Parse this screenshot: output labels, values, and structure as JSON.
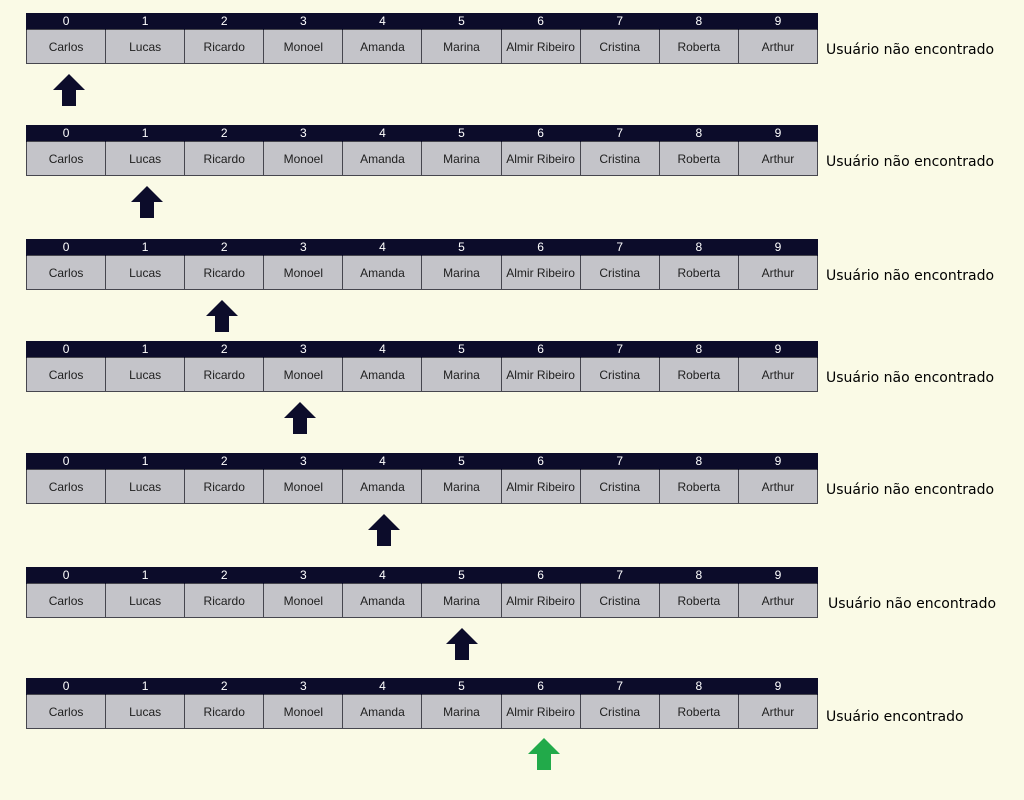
{
  "indices": [
    "0",
    "1",
    "2",
    "3",
    "4",
    "5",
    "6",
    "7",
    "8",
    "9"
  ],
  "names": [
    "Carlos",
    "Lucas",
    "Ricardo",
    "Monoel",
    "Amanda",
    "Marina",
    "Almir Ribeiro",
    "Cristina",
    "Roberta",
    "Arthur"
  ],
  "colors": {
    "index_header_bg": "#0c0c2a",
    "cell_bg": "#c4c4c9",
    "pointer_default": "#0c0c2a",
    "pointer_found": "#22aa4a",
    "background": "#fafae6"
  },
  "steps": [
    {
      "pointer_index": 0,
      "found": false,
      "status": "Usuário não encontrado"
    },
    {
      "pointer_index": 1,
      "found": false,
      "status": "Usuário não encontrado"
    },
    {
      "pointer_index": 2,
      "found": false,
      "status": "Usuário não encontrado"
    },
    {
      "pointer_index": 3,
      "found": false,
      "status": "Usuário não encontrado"
    },
    {
      "pointer_index": 4,
      "found": false,
      "status": "Usuário não encontrado"
    },
    {
      "pointer_index": 5,
      "found": false,
      "status": "Usuário não encontrado"
    },
    {
      "pointer_index": 6,
      "found": true,
      "status": "Usuário  encontrado"
    }
  ]
}
